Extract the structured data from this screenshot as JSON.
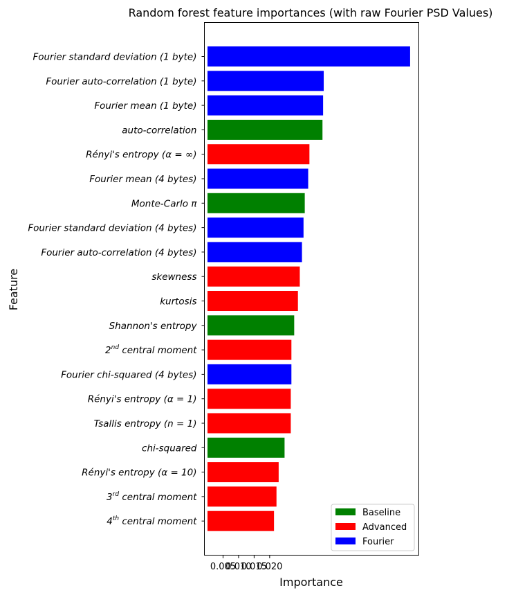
{
  "chart_data": {
    "type": "bar",
    "orientation": "horizontal",
    "title": "Random forest feature importances (with raw Fourier PSD Values)",
    "xlabel": "Importance",
    "ylabel": "Feature",
    "xlim": [
      -0.001,
      0.068
    ],
    "xticks": [
      0.005,
      0.01,
      0.015,
      0.02
    ],
    "xtick_labels": [
      "0.005",
      "0.010",
      "0.015",
      "0.020"
    ],
    "grid": false,
    "legend_position": "lower-right",
    "groups": [
      {
        "name": "Baseline",
        "color": "#008000"
      },
      {
        "name": "Advanced",
        "color": "#ff0000"
      },
      {
        "name": "Fourier",
        "color": "#0000ff"
      }
    ],
    "bars": [
      {
        "label": "Fourier standard deviation (1 byte)",
        "value": 0.0652,
        "group": "Fourier"
      },
      {
        "label": "Fourier auto-correlation (1 byte)",
        "value": 0.0374,
        "group": "Fourier"
      },
      {
        "label": "Fourier mean (1 byte)",
        "value": 0.0372,
        "group": "Fourier"
      },
      {
        "label": "auto-correlation",
        "value": 0.037,
        "group": "Baseline"
      },
      {
        "label": "Rényi's entropy (α = ∞)",
        "value": 0.0328,
        "group": "Advanced"
      },
      {
        "label": "Fourier mean (4 bytes)",
        "value": 0.0324,
        "group": "Fourier"
      },
      {
        "label": "Monte-Carlo π",
        "value": 0.0313,
        "group": "Baseline"
      },
      {
        "label": "Fourier standard deviation (4 bytes)",
        "value": 0.0309,
        "group": "Fourier"
      },
      {
        "label": "Fourier auto-correlation (4 bytes)",
        "value": 0.0304,
        "group": "Fourier"
      },
      {
        "label": "skewness",
        "value": 0.0297,
        "group": "Advanced"
      },
      {
        "label": "kurtosis",
        "value": 0.0291,
        "group": "Advanced"
      },
      {
        "label": "Shannon's entropy",
        "value": 0.0279,
        "group": "Baseline"
      },
      {
        "label": "2nd central moment",
        "label_html": "2<tspan dy='-6' font-size='9'>nd</tspan><tspan dy='6'> central moment</tspan>",
        "value": 0.027,
        "group": "Advanced"
      },
      {
        "label": "Fourier chi-squared (4 bytes)",
        "value": 0.027,
        "group": "Fourier"
      },
      {
        "label": "Rényi's entropy (α = 1)",
        "value": 0.0268,
        "group": "Advanced"
      },
      {
        "label": "Tsallis entropy (n = 1)",
        "value": 0.0268,
        "group": "Advanced"
      },
      {
        "label": "chi-squared",
        "value": 0.0248,
        "group": "Baseline"
      },
      {
        "label": "Rényi's entropy (α = 10)",
        "value": 0.0229,
        "group": "Advanced"
      },
      {
        "label": "3rd central moment",
        "label_html": "3<tspan dy='-6' font-size='9'>rd</tspan><tspan dy='6'> central moment</tspan>",
        "value": 0.0222,
        "group": "Advanced"
      },
      {
        "label": "4th central moment",
        "label_html": "4<tspan dy='-6' font-size='9'>th</tspan><tspan dy='6'> central moment</tspan>",
        "value": 0.0214,
        "group": "Advanced"
      }
    ]
  }
}
